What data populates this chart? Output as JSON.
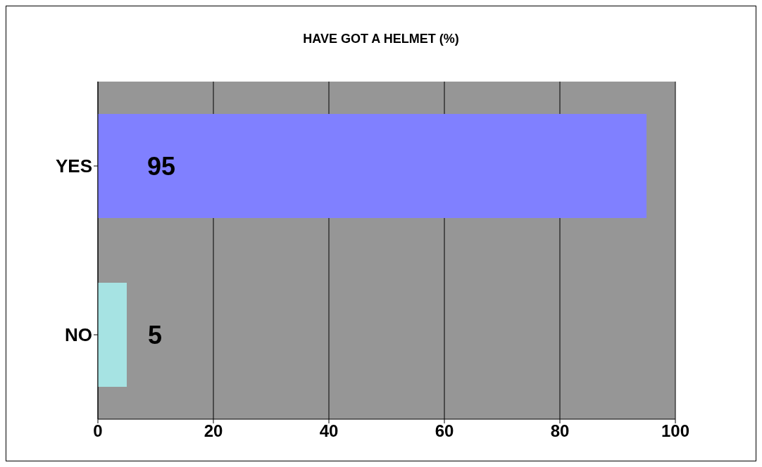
{
  "chart_data": {
    "type": "bar",
    "orientation": "horizontal",
    "title": "HAVE GOT A HELMET  (%)",
    "categories": [
      "YES",
      "NO"
    ],
    "values": [
      95,
      5
    ],
    "colors": [
      "#8080ff",
      "#a6e3e3"
    ],
    "xlim": [
      0,
      100
    ],
    "xticks": [
      0,
      20,
      40,
      60,
      80,
      100
    ],
    "grid": "x",
    "data_labels": true
  }
}
